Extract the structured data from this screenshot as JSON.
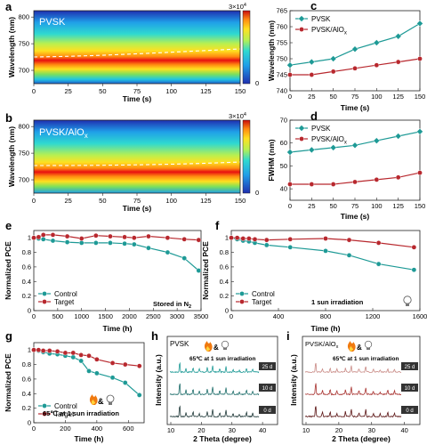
{
  "colors": {
    "teal": "#1e9a96",
    "red": "#b8282e",
    "gray": "#7f7f7f",
    "dark": "#222222"
  },
  "panels": {
    "a": {
      "letter": "a",
      "tag": "PVSK",
      "cbar_max": "3×10",
      "cbar_exp": "4",
      "xlabel": "Time (s)",
      "ylabel": "Wavelength (nm)",
      "xticks": [
        "0",
        "25",
        "50",
        "75",
        "100",
        "125",
        "150"
      ],
      "yticks": [
        "700",
        "750",
        "800"
      ]
    },
    "b": {
      "letter": "b",
      "tag_base": "PVSK/AlO",
      "tag_sub": "x",
      "cbar_max": "3×10",
      "cbar_exp": "4",
      "xlabel": "Time (s)",
      "ylabel": "Wavelength (nm)",
      "xticks": [
        "0",
        "25",
        "50",
        "75",
        "100",
        "125",
        "150"
      ],
      "yticks": [
        "700",
        "750",
        "800"
      ]
    },
    "c": {
      "letter": "c"
    },
    "d": {
      "letter": "d"
    },
    "e": {
      "letter": "e"
    },
    "f": {
      "letter": "f"
    },
    "g": {
      "letter": "g"
    },
    "h": {
      "letter": "h",
      "tag": "PVSK",
      "cond": "65℃ at  1 sun irradiation",
      "amp": "&",
      "days": [
        "25 d",
        "10 d",
        "0 d"
      ],
      "xlabel": "2 Theta (degree)",
      "ylabel": "Intensity (a.u.)",
      "xticks": [
        "10",
        "20",
        "30",
        "40"
      ]
    },
    "i": {
      "letter": "i",
      "tag_base": "PVSK/AlO",
      "tag_sub": "x",
      "cond": "65℃ at  1 sun irradiation",
      "amp": "&",
      "days": [
        "25 d",
        "10 d",
        "0 d"
      ],
      "xlabel": "2 Theta (degree)",
      "ylabel": "Intensity (a.u.)",
      "xticks": [
        "10",
        "20",
        "30",
        "40"
      ]
    }
  },
  "chart_data": [
    {
      "id": "c",
      "type": "line",
      "xlabel": "Time (s)",
      "ylabel": "Wavelength (nm)",
      "x": [
        0,
        25,
        50,
        75,
        100,
        125,
        150
      ],
      "xlim": [
        0,
        150
      ],
      "ylim": [
        740,
        765
      ],
      "xticks": [
        0,
        25,
        50,
        75,
        100,
        125,
        150
      ],
      "yticks": [
        740,
        745,
        750,
        755,
        760,
        765
      ],
      "legend": "top-left",
      "series": [
        {
          "name": "PVSK",
          "marker": "diamond",
          "color": "teal",
          "values": [
            748,
            749,
            750,
            753,
            755,
            757,
            761
          ]
        },
        {
          "name": "PVSK/AlO",
          "name_sub": "x",
          "marker": "circle",
          "color": "red",
          "values": [
            745,
            745,
            746,
            747,
            748,
            749,
            750
          ]
        }
      ]
    },
    {
      "id": "d",
      "type": "line",
      "xlabel": "Time (s)",
      "ylabel": "FWHM (nm)",
      "x": [
        0,
        25,
        50,
        75,
        100,
        125,
        150
      ],
      "xlim": [
        0,
        150
      ],
      "ylim": [
        35,
        70
      ],
      "xticks": [
        0,
        25,
        50,
        75,
        100,
        125,
        150
      ],
      "yticks": [
        40,
        50,
        60,
        70
      ],
      "legend": "top-left",
      "series": [
        {
          "name": "PVSK",
          "marker": "diamond",
          "color": "teal",
          "values": [
            56,
            57,
            58,
            59,
            61,
            63,
            65
          ]
        },
        {
          "name": "PVSK/AlO",
          "name_sub": "x",
          "marker": "circle",
          "color": "red",
          "values": [
            42,
            42,
            42,
            43,
            44,
            45,
            47
          ]
        }
      ]
    },
    {
      "id": "e",
      "type": "line",
      "xlabel": "Time (h)",
      "ylabel": "Normalized PCE",
      "xlim": [
        0,
        3500
      ],
      "ylim": [
        0,
        1.1
      ],
      "xticks": [
        0,
        500,
        1000,
        1500,
        2000,
        2500,
        3000,
        3500
      ],
      "yticks": [
        0,
        0.2,
        0.4,
        0.6,
        0.8,
        1.0
      ],
      "legend": "bottom-left",
      "annotation": "Stored in N",
      "annotation_sub": "2",
      "series": [
        {
          "name": "Control",
          "color": "teal",
          "x": [
            0,
            100,
            200,
            400,
            700,
            1000,
            1300,
            1600,
            1900,
            2100,
            2400,
            2800,
            3150,
            3450
          ],
          "values": [
            1.0,
            0.99,
            0.98,
            0.96,
            0.94,
            0.93,
            0.93,
            0.93,
            0.92,
            0.91,
            0.86,
            0.8,
            0.72,
            0.55
          ]
        },
        {
          "name": "Target",
          "color": "red",
          "x": [
            0,
            100,
            200,
            400,
            700,
            1000,
            1300,
            1600,
            1900,
            2100,
            2400,
            2800,
            3150,
            3450
          ],
          "values": [
            1.0,
            1.01,
            1.04,
            1.04,
            1.02,
            0.99,
            1.03,
            1.02,
            1.01,
            1.0,
            1.02,
            1.0,
            0.98,
            0.97
          ]
        }
      ]
    },
    {
      "id": "f",
      "type": "line",
      "xlabel": "Time (h)",
      "ylabel": "Normalized PCE",
      "xlim": [
        0,
        1600
      ],
      "ylim": [
        0,
        1.1
      ],
      "xticks": [
        0,
        400,
        800,
        1200,
        1600
      ],
      "yticks": [
        0,
        0.2,
        0.4,
        0.6,
        0.8,
        1.0
      ],
      "legend": "bottom-left",
      "annotation": "1 sun irradiation",
      "series": [
        {
          "name": "Control",
          "color": "teal",
          "x": [
            0,
            50,
            100,
            150,
            200,
            300,
            500,
            800,
            1000,
            1250,
            1550
          ],
          "values": [
            1.0,
            0.98,
            0.96,
            0.95,
            0.93,
            0.9,
            0.87,
            0.82,
            0.76,
            0.64,
            0.56
          ]
        },
        {
          "name": "Target",
          "color": "red",
          "x": [
            0,
            50,
            100,
            150,
            200,
            300,
            500,
            800,
            1000,
            1250,
            1550
          ],
          "values": [
            1.0,
            1.0,
            0.99,
            0.99,
            0.98,
            0.97,
            0.98,
            0.99,
            0.97,
            0.93,
            0.87
          ]
        }
      ]
    },
    {
      "id": "g",
      "type": "line",
      "xlabel": "Time (h)",
      "ylabel": "Normalized PCE",
      "xlim": [
        0,
        700
      ],
      "ylim": [
        0,
        1.1
      ],
      "xticks": [
        0,
        200,
        400,
        600
      ],
      "yticks": [
        0,
        0.2,
        0.4,
        0.6,
        0.8,
        1.0
      ],
      "legend": "bottom-left",
      "annotation": "65℃ at  1 sun irradiation",
      "annotation_amp": "&",
      "series": [
        {
          "name": "Control",
          "color": "teal",
          "x": [
            0,
            30,
            60,
            100,
            150,
            200,
            250,
            300,
            350,
            400,
            500,
            580,
            670
          ],
          "values": [
            1.0,
            0.99,
            0.97,
            0.95,
            0.94,
            0.92,
            0.9,
            0.85,
            0.71,
            0.68,
            0.62,
            0.55,
            0.38
          ]
        },
        {
          "name": "Target",
          "color": "red",
          "x": [
            0,
            30,
            60,
            100,
            150,
            200,
            250,
            300,
            350,
            400,
            500,
            580,
            670
          ],
          "values": [
            1.0,
            1.0,
            0.99,
            0.99,
            0.98,
            0.96,
            0.96,
            0.93,
            0.92,
            0.87,
            0.82,
            0.8,
            0.78
          ]
        }
      ]
    }
  ]
}
